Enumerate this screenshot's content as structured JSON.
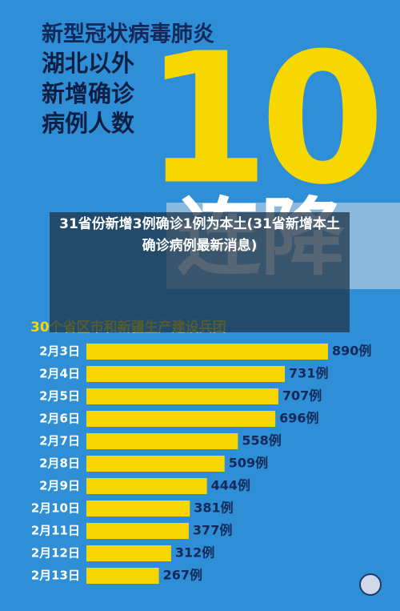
{
  "chart_data": {
    "type": "bar",
    "title": "新型冠状病毒肺炎",
    "title_lines": [
      "湖北以外",
      "新增确诊",
      "病例人数"
    ],
    "headline_number": "10",
    "headline_text": "连降",
    "caption": "31省份新增3例确诊1例为本土(31省新增本土确诊病例最新消息)",
    "subtitle": "30个省区市和新疆生产建设兵团",
    "categories": [
      "2月3日",
      "2月4日",
      "2月5日",
      "2月6日",
      "2月7日",
      "2月8日",
      "2月9日",
      "2月10日",
      "2月11日",
      "2月12日",
      "2月13日"
    ],
    "values": [
      890,
      731,
      707,
      696,
      558,
      509,
      444,
      381,
      377,
      312,
      267
    ],
    "value_labels": [
      "890例",
      "731例",
      "707例",
      "696例",
      "558例",
      "509例",
      "444例",
      "381例",
      "377例",
      "312例",
      "267例"
    ],
    "color": "#f6d700"
  }
}
